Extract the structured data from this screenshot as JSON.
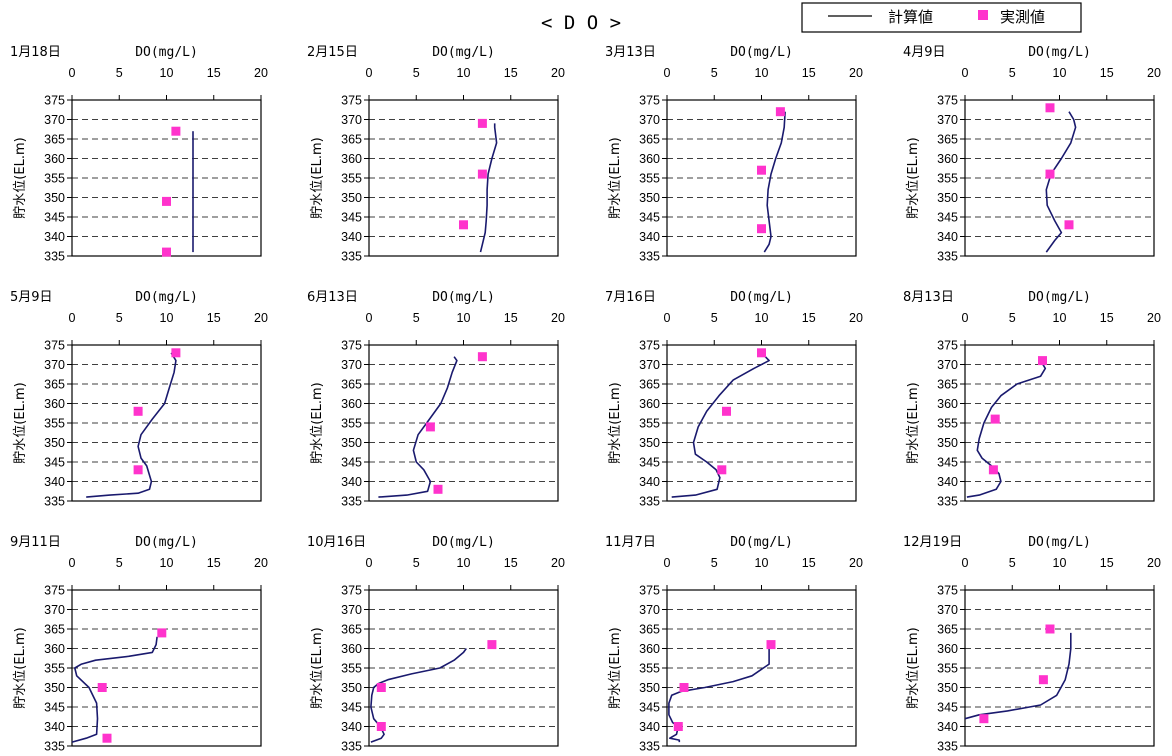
{
  "figure": {
    "title": "< D O >",
    "legend": {
      "calc_label": "計算値",
      "obs_label": "実測値"
    },
    "line_color": "#1a1a6e",
    "marker_color": "#ff33cc"
  },
  "chart_data": [
    {
      "type": "line",
      "title": "1月18日",
      "xlabel": "DO(mg/L)",
      "ylabel": "貯水位(EL.m)",
      "xlim": [
        0,
        20
      ],
      "ylim": [
        335,
        375
      ],
      "xticks": [
        0,
        5,
        10,
        15,
        20
      ],
      "yticks": [
        335,
        340,
        345,
        350,
        355,
        360,
        365,
        370,
        375
      ],
      "grid": "horizontal dashed",
      "series": [
        {
          "name": "計算値",
          "x": [
            12.8,
            12.8
          ],
          "y": [
            336,
            367
          ]
        },
        {
          "name": "実測値",
          "x": [
            11,
            10,
            10
          ],
          "y": [
            367,
            349,
            336
          ]
        }
      ]
    },
    {
      "type": "line",
      "title": "2月15日",
      "xlabel": "DO(mg/L)",
      "ylabel": "貯水位(EL.m)",
      "xlim": [
        0,
        20
      ],
      "ylim": [
        335,
        375
      ],
      "xticks": [
        0,
        5,
        10,
        15,
        20
      ],
      "yticks": [
        335,
        340,
        345,
        350,
        355,
        360,
        365,
        370,
        375
      ],
      "grid": "horizontal dashed",
      "series": [
        {
          "name": "計算値",
          "x": [
            13.3,
            13.3,
            13.5,
            13.0,
            12.6,
            12.5,
            12.5,
            12.4,
            12.3,
            12.0,
            11.8
          ],
          "y": [
            369,
            368,
            364,
            360,
            356,
            352,
            348,
            344,
            341,
            338,
            336
          ]
        },
        {
          "name": "実測値",
          "x": [
            12,
            12,
            10
          ],
          "y": [
            369,
            356,
            343
          ]
        }
      ]
    },
    {
      "type": "line",
      "title": "3月13日",
      "xlabel": "DO(mg/L)",
      "ylabel": "貯水位(EL.m)",
      "xlim": [
        0,
        20
      ],
      "ylim": [
        335,
        375
      ],
      "xticks": [
        0,
        5,
        10,
        15,
        20
      ],
      "yticks": [
        335,
        340,
        345,
        350,
        355,
        360,
        365,
        370,
        375
      ],
      "grid": "horizontal dashed",
      "series": [
        {
          "name": "計算値",
          "x": [
            12.5,
            12.4,
            12.1,
            11.5,
            11.0,
            10.7,
            10.6,
            10.8,
            11.0,
            10.8,
            10.3
          ],
          "y": [
            372,
            368,
            364,
            360,
            356,
            352,
            348,
            344,
            340,
            338,
            336
          ]
        },
        {
          "name": "実測値",
          "x": [
            12,
            10,
            10
          ],
          "y": [
            372,
            357,
            342
          ]
        }
      ]
    },
    {
      "type": "line",
      "title": "4月9日",
      "xlabel": "DO(mg/L)",
      "ylabel": "貯水位(EL.m)",
      "xlim": [
        0,
        20
      ],
      "ylim": [
        335,
        375
      ],
      "xticks": [
        0,
        5,
        10,
        15,
        20
      ],
      "yticks": [
        335,
        340,
        345,
        350,
        355,
        360,
        365,
        370,
        375
      ],
      "grid": "horizontal dashed",
      "series": [
        {
          "name": "計算値",
          "x": [
            11.0,
            11.5,
            11.7,
            11.2,
            10.2,
            9.1,
            8.6,
            8.7,
            9.5,
            10.2,
            9.5,
            8.6
          ],
          "y": [
            372,
            370,
            368,
            364,
            360,
            356,
            352,
            348,
            344,
            341,
            339,
            336
          ]
        },
        {
          "name": "実測値",
          "x": [
            9,
            9,
            11
          ],
          "y": [
            373,
            356,
            343
          ]
        }
      ]
    },
    {
      "type": "line",
      "title": "5月9日",
      "xlabel": "DO(mg/L)",
      "ylabel": "貯水位(EL.m)",
      "xlim": [
        0,
        20
      ],
      "ylim": [
        335,
        375
      ],
      "xticks": [
        0,
        5,
        10,
        15,
        20
      ],
      "yticks": [
        335,
        340,
        345,
        350,
        355,
        360,
        365,
        370,
        375
      ],
      "grid": "horizontal dashed",
      "series": [
        {
          "name": "計算値",
          "x": [
            10.5,
            11.0,
            10.8,
            10.3,
            9.8,
            8.5,
            7.3,
            7.0,
            7.3,
            7.9,
            8.4,
            8.2,
            7.0,
            4.0,
            1.5
          ],
          "y": [
            373,
            371,
            368,
            364,
            360,
            356,
            352,
            349,
            346,
            344,
            340,
            338,
            337,
            336.5,
            336
          ]
        },
        {
          "name": "実測値",
          "x": [
            11,
            7,
            7
          ],
          "y": [
            373,
            358,
            343
          ]
        }
      ]
    },
    {
      "type": "line",
      "title": "6月13日",
      "xlabel": "DO(mg/L)",
      "ylabel": "貯水位(EL.m)",
      "xlim": [
        0,
        20
      ],
      "ylim": [
        335,
        375
      ],
      "xticks": [
        0,
        5,
        10,
        15,
        20
      ],
      "yticks": [
        335,
        340,
        345,
        350,
        355,
        360,
        365,
        370,
        375
      ],
      "grid": "horizontal dashed",
      "series": [
        {
          "name": "計算値",
          "x": [
            9.0,
            9.3,
            8.8,
            8.3,
            7.6,
            6.4,
            5.2,
            4.7,
            5.0,
            5.8,
            6.5,
            6.2,
            4.0,
            1.0
          ],
          "y": [
            372,
            371,
            368,
            364,
            360,
            356,
            352,
            348,
            345,
            343,
            340,
            337.5,
            336.5,
            336
          ]
        },
        {
          "name": "実測値",
          "x": [
            12,
            6.5,
            7.3
          ],
          "y": [
            372,
            354,
            338
          ]
        }
      ]
    },
    {
      "type": "line",
      "title": "7月16日",
      "xlabel": "DO(mg/L)",
      "ylabel": "貯水位(EL.m)",
      "xlim": [
        0,
        20
      ],
      "ylim": [
        335,
        375
      ],
      "xticks": [
        0,
        5,
        10,
        15,
        20
      ],
      "yticks": [
        335,
        340,
        345,
        350,
        355,
        360,
        365,
        370,
        375
      ],
      "grid": "horizontal dashed",
      "series": [
        {
          "name": "計算値",
          "x": [
            10.0,
            10.8,
            9.2,
            7.0,
            5.5,
            4.2,
            3.3,
            2.8,
            3.0,
            4.2,
            5.2,
            5.6,
            5.3,
            3.0,
            0.5
          ],
          "y": [
            373,
            371,
            369,
            366,
            362,
            358,
            354,
            350,
            347,
            345,
            343,
            341,
            338,
            336.5,
            336
          ]
        },
        {
          "name": "実測値",
          "x": [
            10,
            6.3,
            5.8
          ],
          "y": [
            373,
            358,
            343
          ]
        }
      ]
    },
    {
      "type": "line",
      "title": "8月13日",
      "xlabel": "DO(mg/L)",
      "ylabel": "貯水位(EL.m)",
      "xlim": [
        0,
        20
      ],
      "ylim": [
        335,
        375
      ],
      "xticks": [
        0,
        5,
        10,
        15,
        20
      ],
      "yticks": [
        335,
        340,
        345,
        350,
        355,
        360,
        365,
        370,
        375
      ],
      "grid": "horizontal dashed",
      "series": [
        {
          "name": "計算値",
          "x": [
            8.0,
            8.5,
            8.0,
            5.5,
            3.8,
            2.8,
            2.0,
            1.5,
            1.3,
            1.8,
            2.8,
            3.6,
            3.8,
            3.3,
            1.5,
            0.2
          ],
          "y": [
            371,
            369,
            367,
            365,
            362,
            359,
            355,
            351,
            348,
            346,
            344,
            342,
            340,
            338,
            336.5,
            336
          ]
        },
        {
          "name": "実測値",
          "x": [
            8.2,
            3.2,
            3.0
          ],
          "y": [
            371,
            356,
            343
          ]
        }
      ]
    },
    {
      "type": "line",
      "title": "9月11日",
      "xlabel": "DO(mg/L)",
      "ylabel": "貯水位(EL.m)",
      "xlim": [
        0,
        20
      ],
      "ylim": [
        335,
        375
      ],
      "xticks": [
        0,
        5,
        10,
        15,
        20
      ],
      "yticks": [
        335,
        340,
        345,
        350,
        355,
        360,
        365,
        370,
        375
      ],
      "grid": "horizontal dashed",
      "series": [
        {
          "name": "計算値",
          "x": [
            9.0,
            8.9,
            8.5,
            6.0,
            2.5,
            1.0,
            0.3,
            0.5,
            1.8,
            2.6,
            2.7,
            2.6,
            1.5,
            0.0
          ],
          "y": [
            363,
            361,
            359,
            358,
            357,
            356,
            355,
            353,
            350,
            346,
            342,
            338,
            337,
            336
          ]
        },
        {
          "name": "実測値",
          "x": [
            9.5,
            3.2,
            3.7
          ],
          "y": [
            364,
            350,
            337
          ]
        }
      ]
    },
    {
      "type": "line",
      "title": "10月16日",
      "xlabel": "DO(mg/L)",
      "ylabel": "貯水位(EL.m)",
      "xlim": [
        0,
        20
      ],
      "ylim": [
        335,
        375
      ],
      "xticks": [
        0,
        5,
        10,
        15,
        20
      ],
      "yticks": [
        335,
        340,
        345,
        350,
        355,
        360,
        365,
        370,
        375
      ],
      "grid": "horizontal dashed",
      "series": [
        {
          "name": "計算値",
          "x": [
            10.3,
            10.0,
            9.0,
            7.5,
            4.5,
            2.0,
            1.0,
            0.5,
            0.3,
            0.2,
            0.5,
            1.2,
            1.6,
            1.3,
            0.2
          ],
          "y": [
            360,
            359,
            357,
            355,
            353.5,
            352,
            351,
            350,
            348,
            345,
            342,
            340,
            338,
            337,
            336
          ]
        },
        {
          "name": "実測値",
          "x": [
            13,
            1.3,
            1.3
          ],
          "y": [
            361,
            350,
            340
          ]
        }
      ]
    },
    {
      "type": "line",
      "title": "11月7日",
      "xlabel": "DO(mg/L)",
      "ylabel": "貯水位(EL.m)",
      "xlim": [
        0,
        20
      ],
      "ylim": [
        335,
        375
      ],
      "xticks": [
        0,
        5,
        10,
        15,
        20
      ],
      "yticks": [
        335,
        340,
        345,
        350,
        355,
        360,
        365,
        370,
        375
      ],
      "grid": "horizontal dashed",
      "series": [
        {
          "name": "計算値",
          "x": [
            10.8,
            10.8,
            9.0,
            7.0,
            4.0,
            1.5,
            0.5,
            0.2,
            0.2,
            0.6,
            1.2,
            1.0,
            0.3,
            1.3,
            1.3
          ],
          "y": [
            361,
            356,
            353,
            351.5,
            350,
            349,
            348,
            346,
            343,
            341,
            340,
            338,
            337,
            336.5,
            336
          ]
        },
        {
          "name": "実測値",
          "x": [
            11,
            1.8,
            1.2
          ],
          "y": [
            361,
            350,
            340
          ]
        }
      ]
    },
    {
      "type": "line",
      "title": "12月19日",
      "xlabel": "DO(mg/L)",
      "ylabel": "貯水位(EL.m)",
      "xlim": [
        0,
        20
      ],
      "ylim": [
        335,
        375
      ],
      "xticks": [
        0,
        5,
        10,
        15,
        20
      ],
      "yticks": [
        335,
        340,
        345,
        350,
        355,
        360,
        365,
        370,
        375
      ],
      "grid": "horizontal dashed",
      "series": [
        {
          "name": "計算値",
          "x": [
            11.2,
            11.2,
            11.0,
            10.6,
            9.7,
            8.0,
            4.5,
            1.5,
            0.0
          ],
          "y": [
            364,
            360,
            356,
            352,
            348,
            345.5,
            344,
            343,
            342
          ]
        },
        {
          "name": "実測値",
          "x": [
            9,
            8.3,
            2
          ],
          "y": [
            365,
            352,
            342
          ]
        }
      ]
    }
  ]
}
